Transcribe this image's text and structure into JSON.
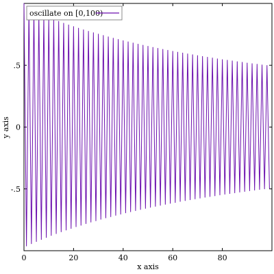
{
  "chart_data": {
    "type": "line",
    "title": "",
    "xlabel": "x axis",
    "ylabel": "y axis",
    "xlim": [
      0,
      100
    ],
    "ylim": [
      -1,
      1
    ],
    "x_ticks": [
      {
        "value": 0,
        "label": "0"
      },
      {
        "value": 20,
        "label": "20"
      },
      {
        "value": 40,
        "label": "40"
      },
      {
        "value": 60,
        "label": "60"
      },
      {
        "value": 80,
        "label": "80"
      }
    ],
    "y_ticks": [
      {
        "value": 0.5,
        "label": ".5"
      },
      {
        "value": 0,
        "label": "0"
      },
      {
        "value": -0.5,
        "label": "-.5"
      }
    ],
    "legend_position": "top-left",
    "series": [
      {
        "name": "oscillate on [0,100)",
        "color": "#6a0dad",
        "x": [
          0,
          1,
          2,
          3,
          4,
          5,
          6,
          7,
          8,
          9,
          10,
          11,
          12,
          13,
          14,
          15,
          16,
          17,
          18,
          19,
          20,
          21,
          22,
          23,
          24,
          25,
          26,
          27,
          28,
          29,
          30,
          31,
          32,
          33,
          34,
          35,
          36,
          37,
          38,
          39,
          40,
          41,
          42,
          43,
          44,
          45,
          46,
          47,
          48,
          49,
          50,
          51,
          52,
          53,
          54,
          55,
          56,
          57,
          58,
          59,
          60,
          61,
          62,
          63,
          64,
          65,
          66,
          67,
          68,
          69,
          70,
          71,
          72,
          73,
          74,
          75,
          76,
          77,
          78,
          79,
          80,
          81,
          82,
          83,
          84,
          85,
          86,
          87,
          88,
          89,
          90,
          91,
          92,
          93,
          94,
          95,
          96,
          97,
          98,
          99
        ],
        "y": [
          1,
          -0.962,
          0.952,
          -0.943,
          0.935,
          -0.926,
          0.917,
          -0.909,
          0.901,
          -0.893,
          0.885,
          -0.877,
          0.87,
          -0.862,
          0.855,
          -0.847,
          0.84,
          -0.833,
          0.826,
          -0.82,
          0.813,
          -0.806,
          0.8,
          -0.794,
          0.787,
          -0.781,
          0.775,
          -0.769,
          0.763,
          -0.758,
          0.752,
          -0.746,
          0.741,
          -0.735,
          0.73,
          -0.725,
          0.719,
          -0.714,
          0.709,
          -0.704,
          0.699,
          -0.694,
          0.69,
          -0.685,
          0.68,
          -0.676,
          0.671,
          -0.667,
          0.662,
          -0.658,
          0.654,
          -0.649,
          0.645,
          -0.641,
          0.637,
          -0.633,
          0.629,
          -0.625,
          0.621,
          -0.617,
          0.613,
          -0.61,
          0.606,
          -0.602,
          0.599,
          -0.595,
          0.592,
          -0.588,
          0.585,
          -0.581,
          0.578,
          -0.575,
          0.571,
          -0.568,
          0.565,
          -0.562,
          0.559,
          -0.556,
          0.552,
          -0.549,
          0.546,
          -0.543,
          0.541,
          -0.538,
          0.535,
          -0.532,
          0.529,
          -0.526,
          0.524,
          -0.521,
          0.518,
          -0.515,
          0.513,
          -0.51,
          0.508,
          -0.505,
          0.503,
          -0.5,
          0.498,
          -0.495
        ]
      }
    ]
  }
}
